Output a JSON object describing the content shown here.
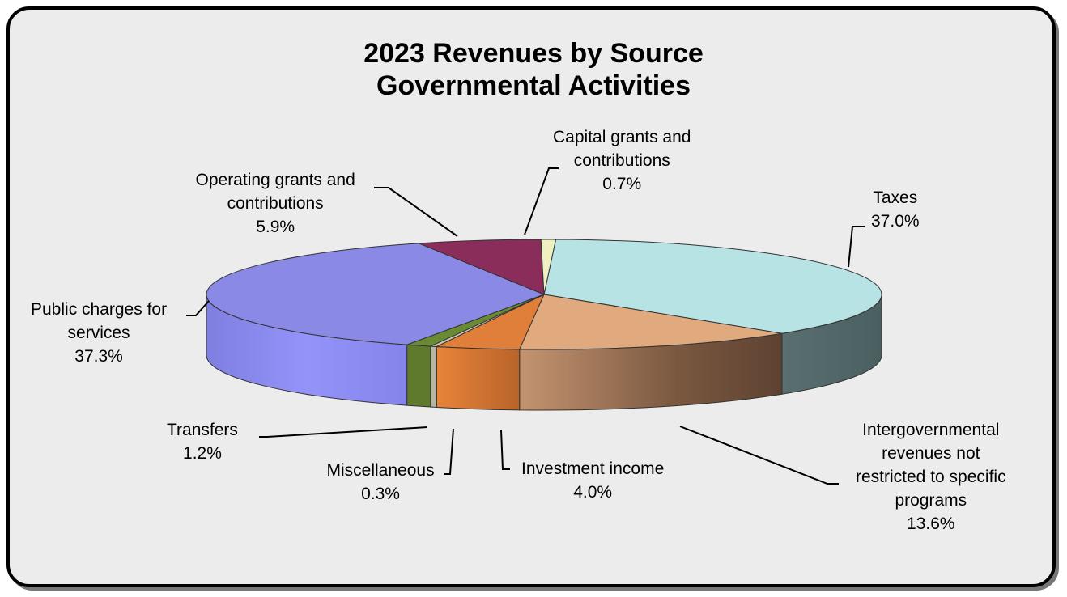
{
  "chart_data": {
    "type": "pie",
    "title": "2023 Revenues by Source",
    "subtitle": "Governmental  Activities",
    "slices": [
      {
        "name_lines": [
          "Taxes"
        ],
        "value": 37.0,
        "label": "37.0%",
        "color": "#b7e3e5"
      },
      {
        "name_lines": [
          "Intergovernmental",
          "revenues not",
          "restricted to specific",
          "programs"
        ],
        "value": 13.6,
        "label": "13.6%",
        "color": "#e0a97e"
      },
      {
        "name_lines": [
          "Investment income"
        ],
        "value": 4.0,
        "label": "4.0%",
        "color": "#e07f3a"
      },
      {
        "name_lines": [
          "Miscellaneous"
        ],
        "value": 0.3,
        "label": "0.3%",
        "color": "#c8c8b0"
      },
      {
        "name_lines": [
          "Transfers"
        ],
        "value": 1.2,
        "label": "1.2%",
        "color": "#6a8a34"
      },
      {
        "name_lines": [
          "Public charges for",
          "services"
        ],
        "value": 37.3,
        "label": "37.3%",
        "color": "#8a8ae6"
      },
      {
        "name_lines": [
          "Operating grants and",
          "contributions"
        ],
        "value": 5.9,
        "label": "5.9%",
        "color": "#8a2d5a"
      },
      {
        "name_lines": [
          "Capital grants and",
          "contributions"
        ],
        "value": 0.7,
        "label": "0.7%",
        "color": "#f0efc0"
      }
    ]
  }
}
